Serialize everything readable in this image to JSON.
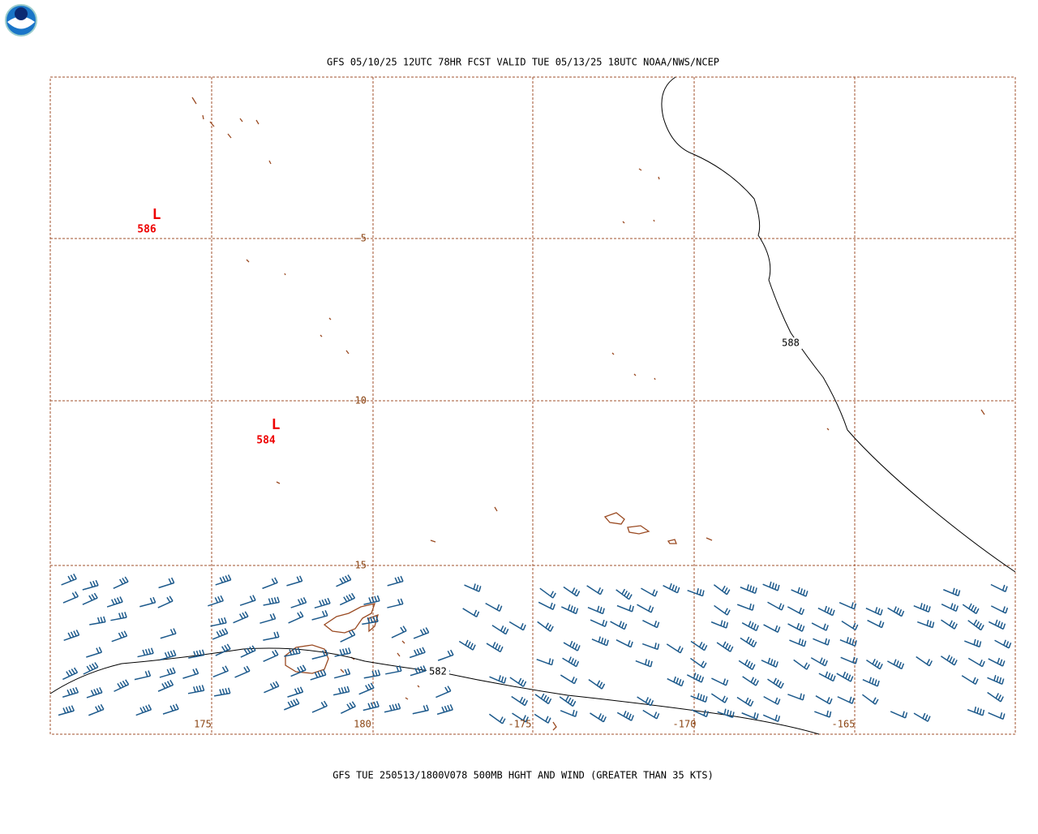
{
  "header": {
    "title": "GFS 05/10/25 12UTC 78HR FCST VALID TUE 05/13/25 18UTC NOAA/NWS/NCEP"
  },
  "map": {
    "lat_labels": [
      -5,
      -10,
      -15
    ],
    "lon_labels": [
      175,
      180,
      -175,
      -170,
      -165
    ],
    "lows": [
      {
        "symbol": "L",
        "value": 586
      },
      {
        "symbol": "L",
        "value": 584
      }
    ],
    "contour_labels": [
      588,
      582
    ]
  },
  "footer": {
    "caption": "GFS TUE 250513/1800V078 500MB HGHT AND WIND (GREATER THAN 35 KTS)"
  }
}
